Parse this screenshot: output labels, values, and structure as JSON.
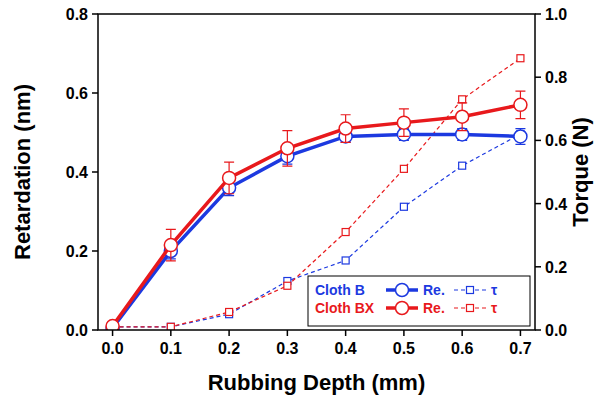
{
  "chart_data": {
    "type": "line",
    "x_label": "Rubbing Depth (mm)",
    "y_label": "Retardation (nm)",
    "y2_label": "Torque (N)",
    "x": [
      0,
      0.1,
      0.2,
      0.3,
      0.4,
      0.5,
      0.6,
      0.7
    ],
    "xlim": [
      -0.025,
      0.725
    ],
    "xticks": [
      {
        "value": 0,
        "label": "0.0"
      },
      0.1,
      0.2,
      0.3,
      0.4,
      0.5,
      0.6,
      0.7
    ],
    "ylim": [
      0,
      0.8
    ],
    "yticks": [
      {
        "value": 0,
        "label": "0.0"
      },
      0.2,
      0.4,
      0.6,
      0.8
    ],
    "y2lim": [
      0,
      1
    ],
    "y2ticks": [
      {
        "value": 0,
        "label": "0.0"
      },
      0.2,
      0.4,
      0.6,
      0.8,
      {
        "value": 1,
        "label": "1.0"
      }
    ],
    "grid": false,
    "legend": "bottom-right",
    "series": [
      {
        "group": "Cloth B",
        "name": "Re.",
        "color": "#1c39e0",
        "marker": "circle",
        "line_style": "solid",
        "values": [
          0.005,
          0.2,
          0.36,
          0.44,
          0.49,
          0.495,
          0.495,
          0.49
        ],
        "errors": [
          0.005,
          0.02,
          0.02,
          0.02,
          0.015,
          0.015,
          0.015,
          0.02
        ]
      },
      {
        "group": "Cloth B",
        "name": "τ",
        "color": "#1c39e0",
        "marker": "square",
        "line_style": "dashed",
        "axis": "y2",
        "values": [
          0.01,
          0.01,
          0.05,
          0.155,
          0.22,
          0.39,
          0.52,
          0.62
        ]
      },
      {
        "group": "Cloth BX",
        "name": "Re.",
        "color": "#e8191c",
        "marker": "circle",
        "line_style": "solid",
        "values": [
          0.01,
          0.215,
          0.385,
          0.46,
          0.51,
          0.525,
          0.54,
          0.57
        ],
        "errors": [
          0.005,
          0.04,
          0.04,
          0.045,
          0.035,
          0.035,
          0.035,
          0.035
        ]
      },
      {
        "group": "Cloth BX",
        "name": "τ",
        "color": "#e8191c",
        "marker": "square",
        "line_style": "dashed",
        "axis": "y2",
        "values": [
          0.01,
          0.01,
          0.057,
          0.14,
          0.31,
          0.51,
          0.73,
          0.86
        ]
      }
    ]
  }
}
